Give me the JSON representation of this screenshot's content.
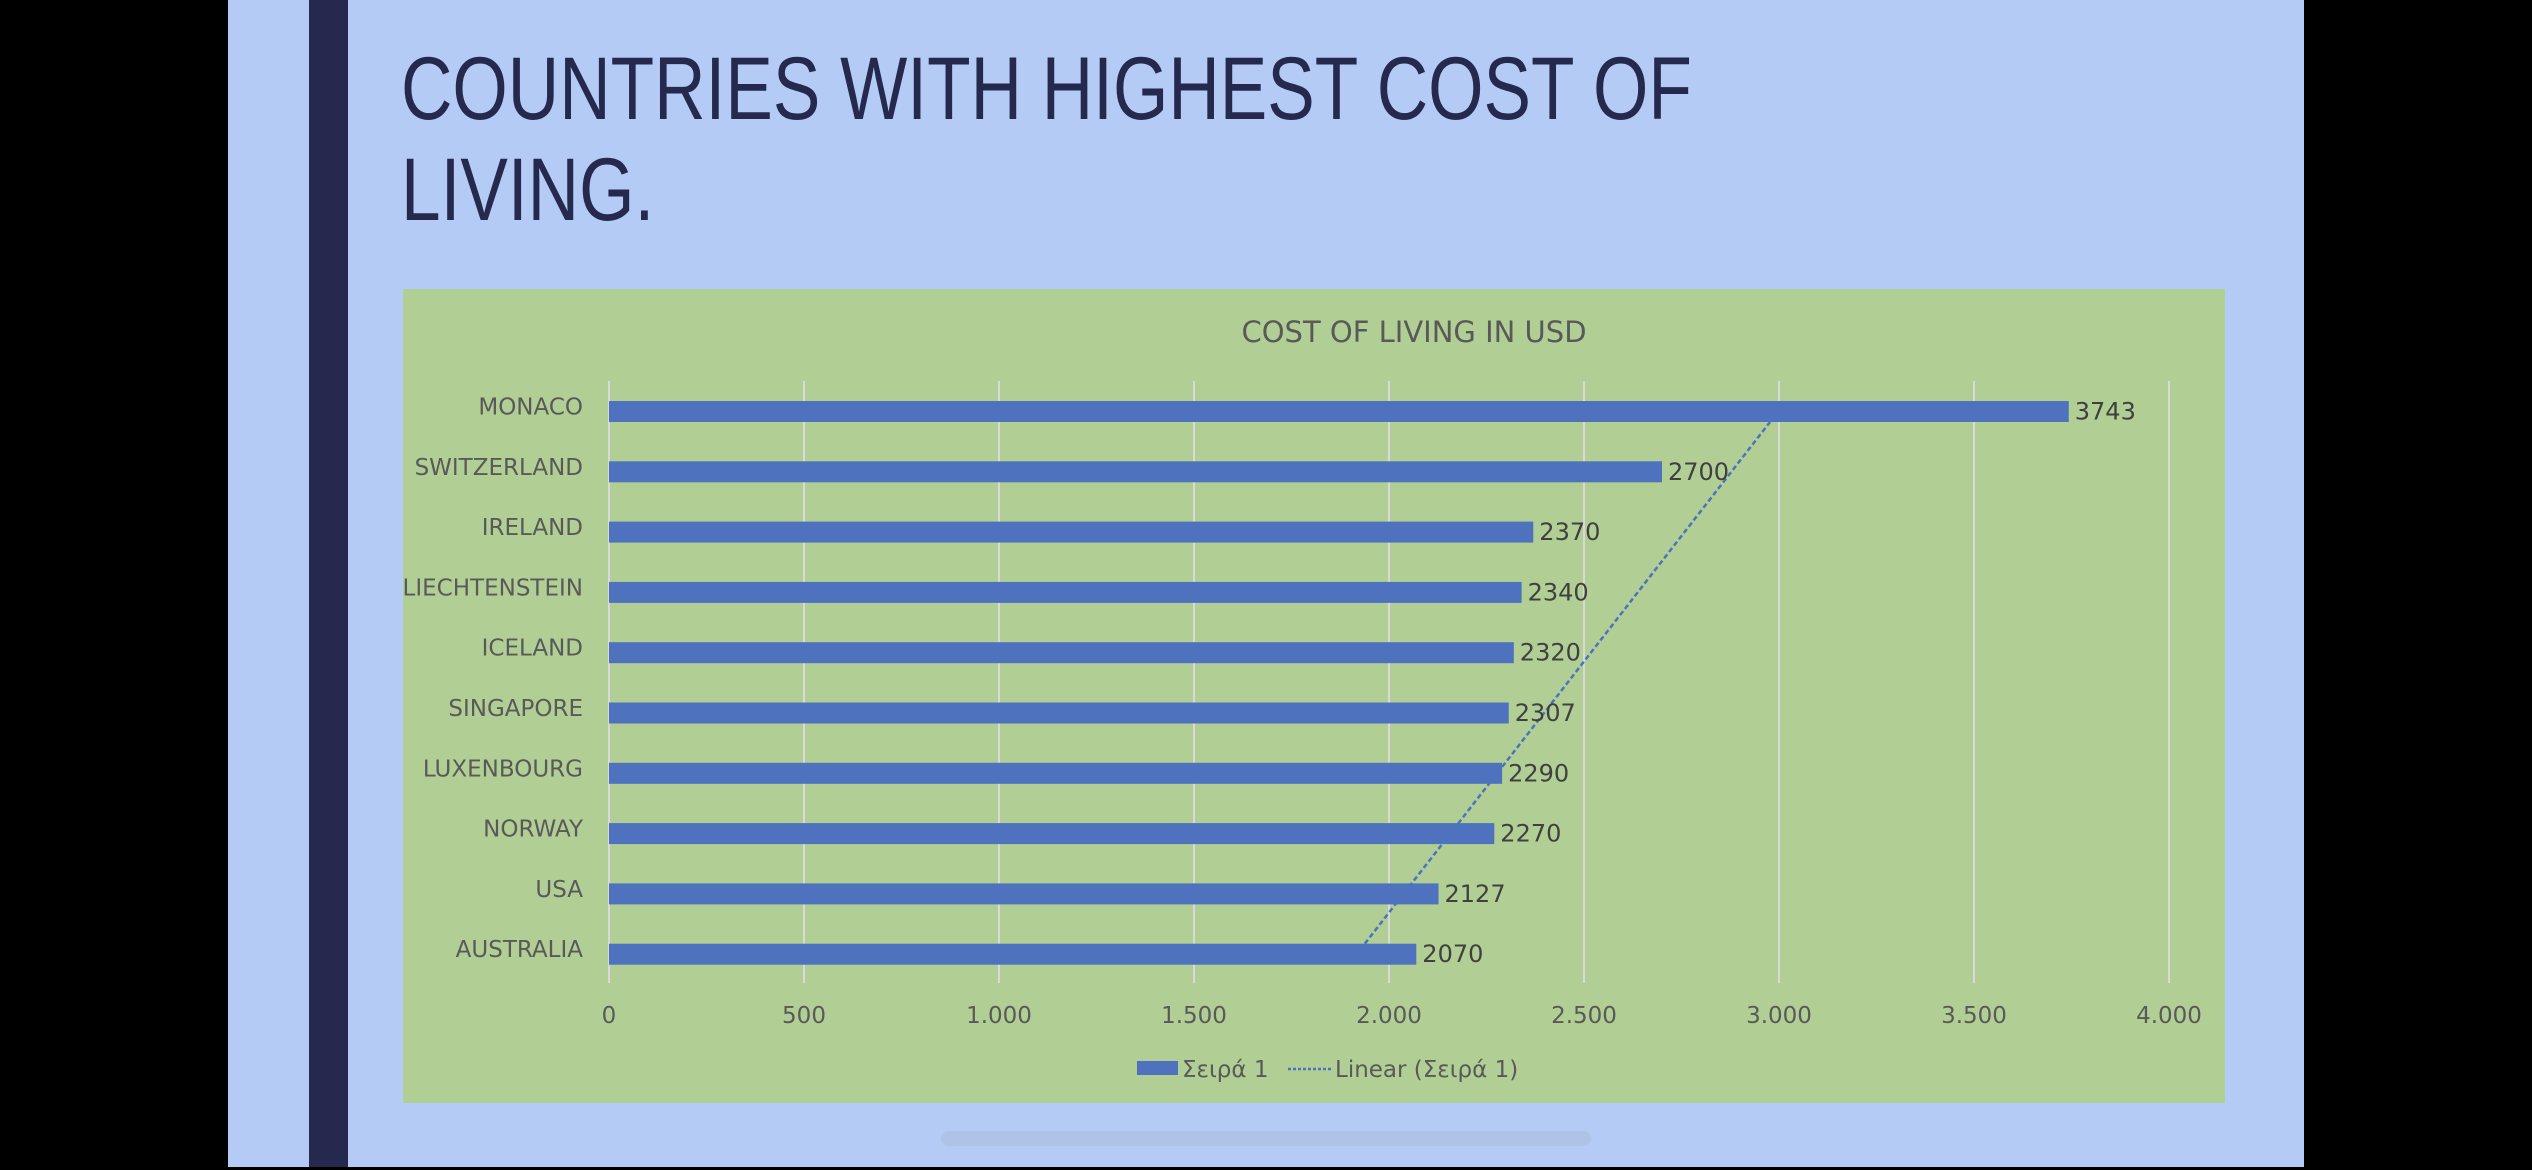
{
  "slide": {
    "title_line1": "COUNTRIES WITH HIGHEST COST OF",
    "title_line2": "LIVING."
  },
  "colors": {
    "slide_bg": "#b3cbf5",
    "accent": "#26294e",
    "chart_bg": "#b1cf94",
    "bar": "#4e72bd",
    "gridline": "#d9d9d9",
    "axis_text": "#595959",
    "label_text": "#404040"
  },
  "chart_data": {
    "type": "bar",
    "orientation": "horizontal",
    "title": "COST OF LIVING IN USD",
    "categories": [
      "MONACO",
      "SWITZERLAND",
      "IRELAND",
      "LIECHTENSTEIN",
      "ICELAND",
      "SINGAPORE",
      "LUXENBOURG",
      "NORWAY",
      "USA",
      "AUSTRALIA"
    ],
    "series": [
      {
        "name": "Σειρά 1",
        "values": [
          3743,
          2700,
          2370,
          2340,
          2320,
          2307,
          2290,
          2270,
          2127,
          2070
        ]
      }
    ],
    "data_labels": [
      "3743",
      "2700",
      "2370",
      "2340",
      "2320",
      "2307",
      "2290",
      "2270",
      "2127",
      "2070"
    ],
    "trendline": {
      "name": "Linear (Σειρά 1)",
      "type": "linear",
      "start_value": 1938,
      "end_value": 2977
    },
    "xlim": [
      0,
      4000
    ],
    "xticks": [
      0,
      500,
      1000,
      1500,
      2000,
      2500,
      3000,
      3500,
      4000
    ],
    "xtick_labels": [
      "0",
      "500",
      "1.000",
      "1.500",
      "2.000",
      "2.500",
      "3.000",
      "3.500",
      "4.000"
    ],
    "xlabel": "",
    "ylabel": "",
    "grid": true,
    "legend": {
      "position": "bottom",
      "entries": [
        "Σειρά 1",
        "Linear (Σειρά 1)"
      ]
    }
  }
}
